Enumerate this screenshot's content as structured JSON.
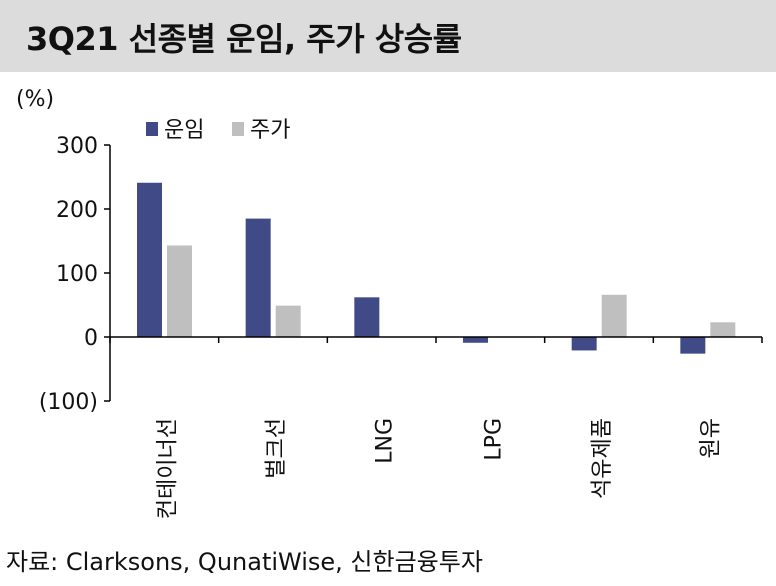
{
  "title": "3Q21 선종별 운임, 주가 상승률",
  "source": "자료: Clarksons, QunatiWise, 신한금융투자",
  "chart_data": {
    "type": "bar",
    "title": "3Q21 선종별 운임, 주가 상승률",
    "unit_label": "(%)",
    "categories": [
      "컨테이너선",
      "벌크선",
      "LNG",
      "LPG",
      "석유제품",
      "원유"
    ],
    "series": [
      {
        "name": "운임",
        "color": "#3f4a87",
        "values": [
          241,
          185,
          62,
          -9,
          -21,
          -26
        ]
      },
      {
        "name": "주가",
        "color": "#bfbfbf",
        "values": [
          143,
          49,
          0,
          0,
          66,
          23
        ]
      }
    ],
    "yticks": [
      300,
      200,
      100,
      0,
      -100
    ],
    "ytick_labels": [
      "300",
      "200",
      "100",
      "0",
      "(100)"
    ],
    "ylim": [
      -100,
      300
    ],
    "grid": false,
    "legend_position": "top-left"
  }
}
